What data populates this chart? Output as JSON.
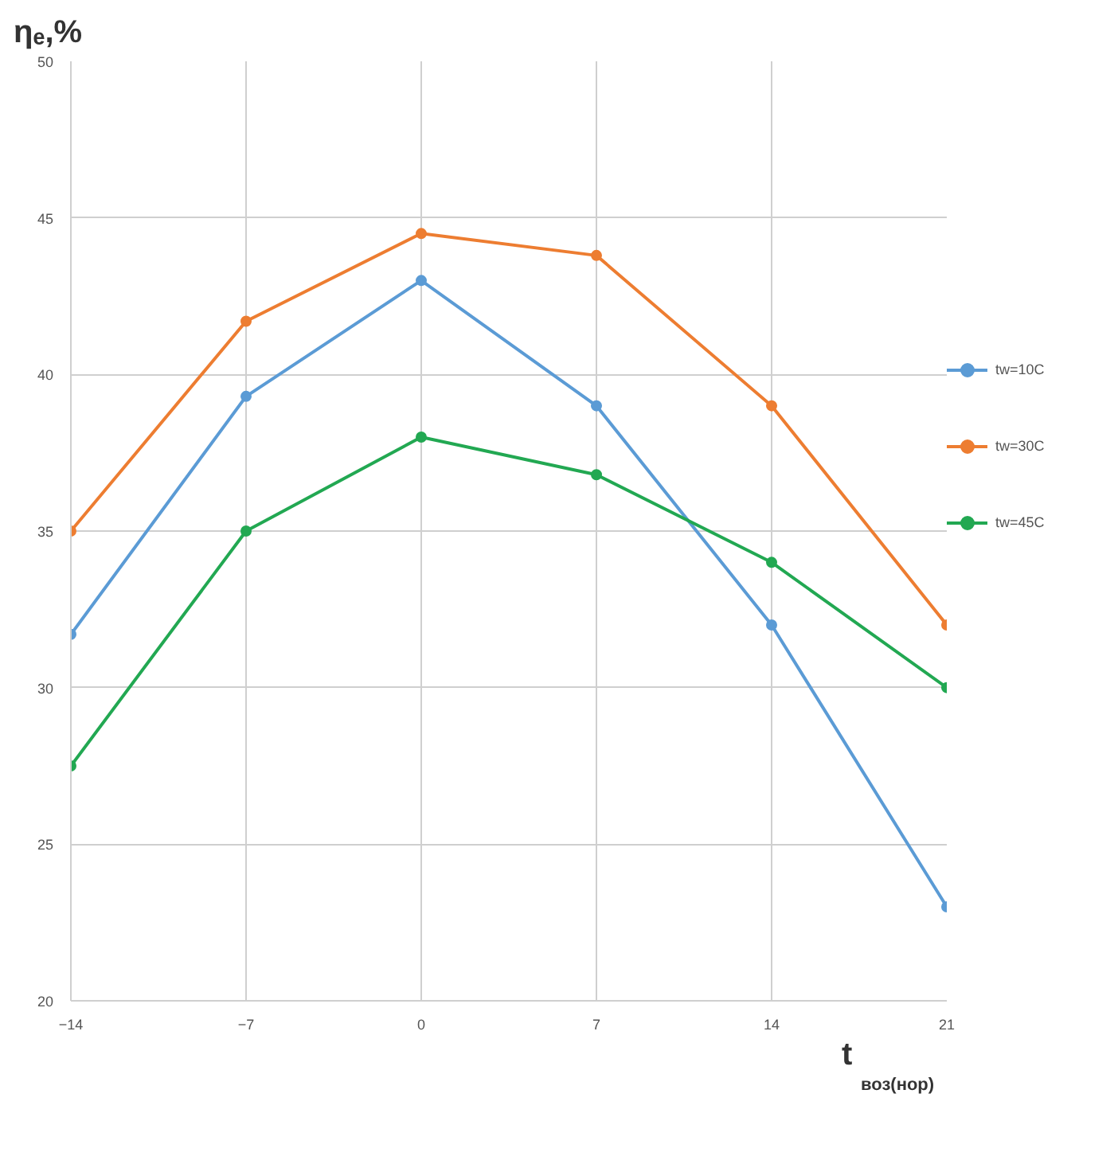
{
  "chart_data": {
    "type": "line",
    "ylabel": "ηₑ,%",
    "xlabel": "t$_{воз(нор)}$",
    "x": [
      -14,
      -7,
      0,
      7,
      14,
      21
    ],
    "series": [
      {
        "name": "tw=10C",
        "color": "#5b9bd5",
        "values": [
          31.7,
          39.3,
          43,
          39,
          32,
          23
        ]
      },
      {
        "name": "tw=30C",
        "color": "#ed7d31",
        "values": [
          35,
          41.7,
          44.5,
          43.8,
          39,
          32
        ]
      },
      {
        "name": "tw=45C",
        "color": "#22a852",
        "values": [
          27.5,
          35,
          38,
          36.8,
          34,
          30
        ]
      }
    ],
    "xlim": [
      -14,
      21
    ],
    "xticks": [
      -14,
      -7,
      0,
      7,
      14,
      21
    ],
    "ylim": [
      20,
      50
    ],
    "yticks": [
      20,
      25,
      30,
      35,
      40,
      45,
      50
    ],
    "grid": true,
    "legend": "right",
    "marker": "circle",
    "line_style": "solid"
  }
}
